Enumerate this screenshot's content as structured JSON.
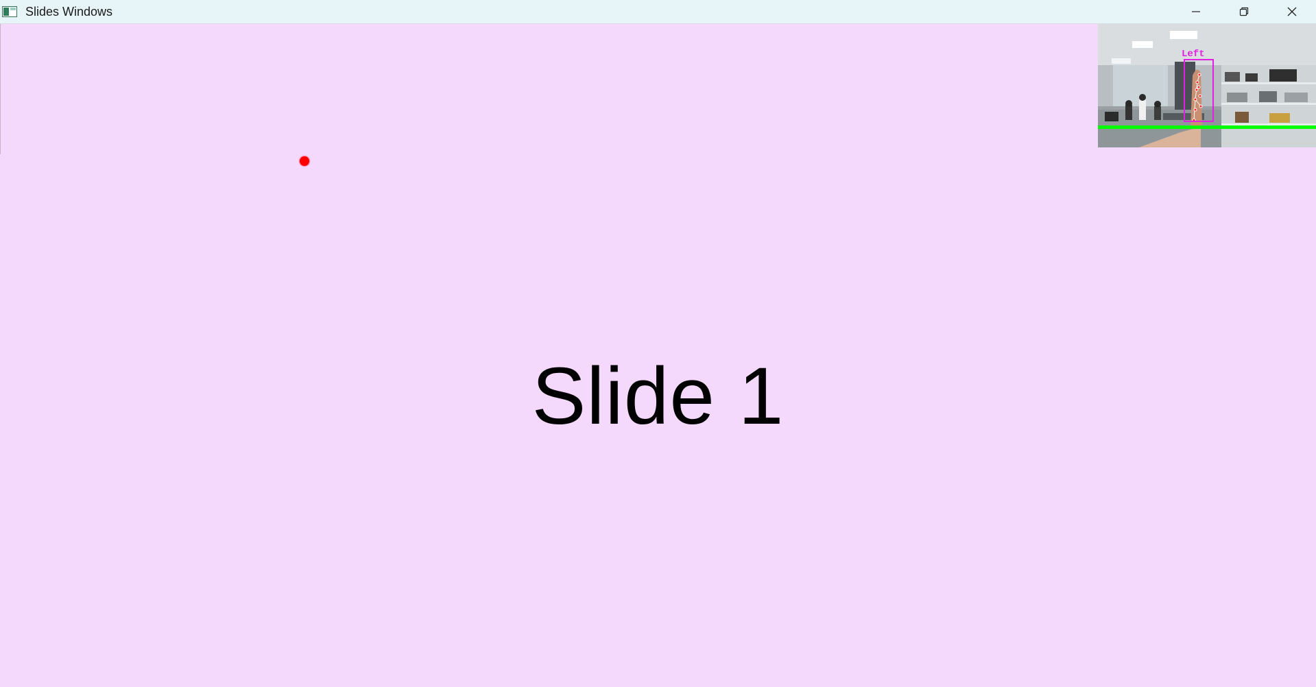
{
  "window": {
    "title": "Slides Windows",
    "controls": [
      "minimize",
      "restore",
      "close"
    ]
  },
  "slide": {
    "title": "Slide 1",
    "background_color": "#f5d9fc",
    "pointer_color": "#ff0000"
  },
  "camera_preview": {
    "hand_label": "Left",
    "box_color": "#e020e0",
    "threshold_line_color": "#00ff00"
  },
  "icons": {
    "app": "app-window-icon",
    "minimize": "minimize-icon",
    "restore": "restore-icon",
    "close": "close-icon"
  }
}
